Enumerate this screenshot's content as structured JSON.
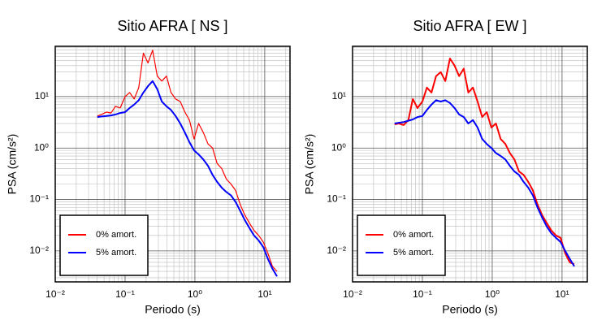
{
  "chart_data": [
    {
      "type": "line",
      "title": "Sitio AFRA [ NS ]",
      "x_label": "Periodo (s)",
      "y_label": "PSA (cm/s²)",
      "log_x": true,
      "log_y": true,
      "grid": true,
      "xlim": [
        0.01,
        23
      ],
      "ylim": [
        0.0025,
        95
      ],
      "xticks": [
        {
          "value": 0.01,
          "label": "10⁻²"
        },
        {
          "value": 0.1,
          "label": "10⁻¹"
        },
        {
          "value": 1,
          "label": "10⁰"
        },
        {
          "value": 10,
          "label": "10¹"
        }
      ],
      "yticks": [
        {
          "value": 0.01,
          "label": "10⁻²"
        },
        {
          "value": 0.1,
          "label": "10⁻¹"
        },
        {
          "value": 1,
          "label": "10⁰"
        },
        {
          "value": 10,
          "label": "10¹"
        }
      ],
      "xminorticks": [
        0.02,
        0.03,
        0.04,
        0.05,
        0.06,
        0.07,
        0.08,
        0.09,
        0.2,
        0.3,
        0.4,
        0.5,
        0.6,
        0.7,
        0.8,
        0.9,
        2,
        3,
        4,
        5,
        6,
        7,
        8,
        9,
        20
      ],
      "yminorticks": [
        0.003,
        0.004,
        0.005,
        0.006,
        0.007,
        0.008,
        0.009,
        0.02,
        0.03,
        0.04,
        0.05,
        0.06,
        0.07,
        0.08,
        0.09,
        0.2,
        0.3,
        0.4,
        0.5,
        0.6,
        0.7,
        0.8,
        0.9,
        2,
        3,
        4,
        5,
        6,
        7,
        8,
        9,
        20,
        30,
        40,
        50,
        60,
        70,
        80,
        90
      ],
      "legend": "lower left",
      "x": [
        0.04,
        0.046,
        0.054,
        0.063,
        0.073,
        0.085,
        0.1,
        0.116,
        0.135,
        0.157,
        0.183,
        0.213,
        0.248,
        0.289,
        0.336,
        0.391,
        0.455,
        0.53,
        0.617,
        0.718,
        0.836,
        0.973,
        1.13,
        1.32,
        1.54,
        1.79,
        2.08,
        2.42,
        2.82,
        3.28,
        3.82,
        4.45,
        5.18,
        6.03,
        7.02,
        8.17,
        9.51,
        11.1,
        12.9,
        15
      ],
      "series": [
        {
          "name": "0% amort.",
          "color": "#ff0000",
          "width": 1.2,
          "values": [
            4.2,
            4.5,
            5.0,
            4.8,
            6.5,
            6.0,
            10,
            12,
            9,
            15,
            70,
            45,
            80,
            25,
            20,
            25,
            12,
            9,
            8,
            5,
            3.5,
            1.5,
            3,
            2.0,
            1.2,
            1.0,
            0.5,
            0.4,
            0.25,
            0.2,
            0.15,
            0.08,
            0.05,
            0.035,
            0.025,
            0.02,
            0.015,
            0.009,
            0.005,
            0.004
          ]
        },
        {
          "name": "5% amort.",
          "color": "#0000ff",
          "width": 2,
          "values": [
            4.0,
            4.1,
            4.2,
            4.3,
            4.5,
            4.8,
            5.0,
            6.0,
            7.0,
            8.5,
            12,
            16,
            20,
            14,
            8,
            6.5,
            5.5,
            4.2,
            3.0,
            2.0,
            1.3,
            0.9,
            0.75,
            0.6,
            0.45,
            0.3,
            0.22,
            0.17,
            0.14,
            0.12,
            0.09,
            0.06,
            0.04,
            0.028,
            0.02,
            0.016,
            0.012,
            0.007,
            0.0045,
            0.0032
          ]
        }
      ]
    },
    {
      "type": "line",
      "title": "Sitio AFRA [ EW ]",
      "x_label": "Periodo (s)",
      "y_label": "PSA (cm/s²)",
      "log_x": true,
      "log_y": true,
      "grid": true,
      "xlim": [
        0.01,
        23
      ],
      "ylim": [
        0.0025,
        95
      ],
      "xticks": [
        {
          "value": 0.01,
          "label": "10⁻²"
        },
        {
          "value": 0.1,
          "label": "10⁻¹"
        },
        {
          "value": 1,
          "label": "10⁰"
        },
        {
          "value": 10,
          "label": "10¹"
        }
      ],
      "yticks": [
        {
          "value": 0.01,
          "label": "10⁻²"
        },
        {
          "value": 0.1,
          "label": "10⁻¹"
        },
        {
          "value": 1,
          "label": "10⁰"
        },
        {
          "value": 10,
          "label": "10¹"
        }
      ],
      "xminorticks": [
        0.02,
        0.03,
        0.04,
        0.05,
        0.06,
        0.07,
        0.08,
        0.09,
        0.2,
        0.3,
        0.4,
        0.5,
        0.6,
        0.7,
        0.8,
        0.9,
        2,
        3,
        4,
        5,
        6,
        7,
        8,
        9,
        20
      ],
      "yminorticks": [
        0.003,
        0.004,
        0.005,
        0.006,
        0.007,
        0.008,
        0.009,
        0.02,
        0.03,
        0.04,
        0.05,
        0.06,
        0.07,
        0.08,
        0.09,
        0.2,
        0.3,
        0.4,
        0.5,
        0.6,
        0.7,
        0.8,
        0.9,
        2,
        3,
        4,
        5,
        6,
        7,
        8,
        9,
        20,
        30,
        40,
        50,
        60,
        70,
        80,
        90
      ],
      "legend": "lower left",
      "x": [
        0.04,
        0.046,
        0.054,
        0.063,
        0.073,
        0.085,
        0.1,
        0.116,
        0.135,
        0.157,
        0.183,
        0.213,
        0.248,
        0.289,
        0.336,
        0.391,
        0.455,
        0.53,
        0.617,
        0.718,
        0.836,
        0.973,
        1.13,
        1.32,
        1.54,
        1.79,
        2.08,
        2.42,
        2.82,
        3.28,
        3.82,
        4.45,
        5.18,
        6.03,
        7.02,
        8.17,
        9.51,
        11.1,
        12.9,
        15
      ],
      "series": [
        {
          "name": "0% amort.",
          "color": "#ff0000",
          "width": 2,
          "values": [
            2.9,
            3.0,
            2.8,
            3.5,
            9,
            6,
            8,
            15,
            12,
            25,
            30,
            20,
            55,
            40,
            25,
            35,
            12,
            15,
            8,
            4,
            5,
            2.5,
            3,
            1.5,
            1.2,
            0.8,
            0.6,
            0.35,
            0.3,
            0.22,
            0.15,
            0.08,
            0.05,
            0.035,
            0.025,
            0.02,
            0.018,
            0.009,
            0.006,
            0.0055
          ]
        },
        {
          "name": "5% amort.",
          "color": "#0000ff",
          "width": 2,
          "values": [
            3.0,
            3.1,
            3.2,
            3.4,
            3.6,
            4.0,
            4.2,
            5.5,
            7.0,
            8.5,
            8.0,
            8.5,
            7.5,
            6.0,
            4.5,
            4.0,
            3.0,
            3.5,
            2.5,
            1.5,
            1.2,
            1.0,
            0.8,
            0.7,
            0.6,
            0.45,
            0.35,
            0.3,
            0.22,
            0.17,
            0.12,
            0.07,
            0.045,
            0.03,
            0.022,
            0.018,
            0.015,
            0.01,
            0.007,
            0.005
          ]
        }
      ]
    }
  ]
}
